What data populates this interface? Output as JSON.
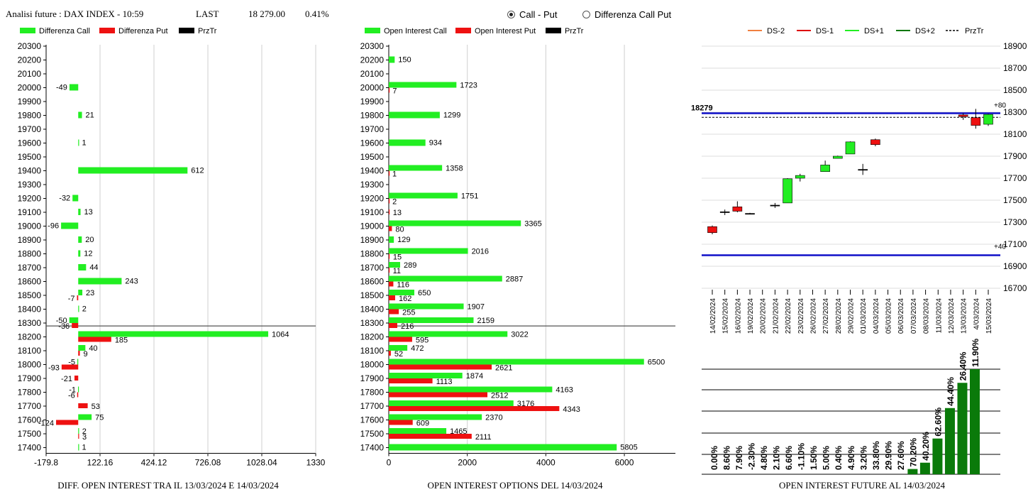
{
  "header": {
    "title": "Analisi future : DAX INDEX - 10:59",
    "last_label": "LAST",
    "last_value": "18 279.00",
    "change": "0.41%"
  },
  "mode": {
    "options": [
      {
        "label": "Call - Put",
        "selected": true
      },
      {
        "label": "Differenza Call Put",
        "selected": false
      }
    ]
  },
  "chart_data": [
    {
      "type": "bar",
      "orientation": "horizontal",
      "title": "DIFF. OPEN INTEREST TRA IL 13/03/2024 E 14/03/2024",
      "legend": [
        {
          "name": "Differenza Call",
          "color": "#22ee22"
        },
        {
          "name": "Differenza Put",
          "color": "#ee1111"
        },
        {
          "name": "PrzTr",
          "color": "#000000"
        }
      ],
      "categories": [
        "20300",
        "20200",
        "20100",
        "20000",
        "19900",
        "19800",
        "19700",
        "19600",
        "19500",
        "19400",
        "19300",
        "19200",
        "19100",
        "19000",
        "18900",
        "18800",
        "18700",
        "18600",
        "18500",
        "18400",
        "18300",
        "18200",
        "18100",
        "18000",
        "17900",
        "17800",
        "17700",
        "17600",
        "17500",
        "17400"
      ],
      "series": [
        {
          "name": "Differenza Call",
          "values": [
            null,
            null,
            null,
            -49,
            null,
            21,
            null,
            1,
            null,
            612,
            null,
            -32,
            13,
            -96,
            20,
            12,
            44,
            243,
            23,
            2,
            -50,
            1064,
            40,
            -5,
            null,
            -1,
            null,
            75,
            2,
            1
          ]
        },
        {
          "name": "Differenza Put",
          "values": [
            null,
            null,
            null,
            null,
            null,
            null,
            null,
            null,
            null,
            null,
            null,
            null,
            null,
            null,
            null,
            null,
            null,
            null,
            -7,
            null,
            -36,
            185,
            9,
            -93,
            -21,
            -6,
            53,
            -124,
            3,
            null
          ]
        }
      ],
      "xticks": [
        "-179.8",
        "122.16",
        "424.12",
        "726.08",
        "1028.04",
        "1330"
      ],
      "xlim": [
        -179.8,
        1330
      ],
      "price_level": "18279"
    },
    {
      "type": "bar",
      "orientation": "horizontal",
      "title": "OPEN INTEREST OPTIONS DEL 14/03/2024",
      "legend": [
        {
          "name": "Open Interest Call",
          "color": "#22ee22"
        },
        {
          "name": "Open Interest Put",
          "color": "#ee1111"
        },
        {
          "name": "PrzTr",
          "color": "#000000"
        }
      ],
      "categories": [
        "20300",
        "20200",
        "20100",
        "20000",
        "19900",
        "19800",
        "19700",
        "19600",
        "19500",
        "19400",
        "19300",
        "19200",
        "19100",
        "19000",
        "18900",
        "18800",
        "18700",
        "18600",
        "18500",
        "18400",
        "18300",
        "18200",
        "18100",
        "18000",
        "17900",
        "17800",
        "17700",
        "17600",
        "17500",
        "17400"
      ],
      "series": [
        {
          "name": "Open Interest Call",
          "values": [
            null,
            150,
            null,
            1723,
            null,
            1299,
            null,
            934,
            null,
            1358,
            null,
            1751,
            null,
            3365,
            129,
            2016,
            289,
            2887,
            650,
            1907,
            2159,
            3022,
            472,
            6500,
            1874,
            4163,
            3176,
            2370,
            1465,
            5805
          ]
        },
        {
          "name": "Open Interest Put",
          "values": [
            null,
            null,
            null,
            7,
            null,
            null,
            null,
            null,
            null,
            1,
            null,
            2,
            13,
            80,
            null,
            15,
            11,
            116,
            162,
            255,
            216,
            595,
            52,
            2621,
            1113,
            2512,
            4343,
            609,
            2111,
            null
          ]
        }
      ],
      "xticks": [
        "0",
        "2000",
        "4000",
        "6000"
      ],
      "xlim": [
        0,
        7300
      ],
      "price_level": "18279"
    },
    {
      "type": "candlestick",
      "legend": [
        {
          "name": "DS-2",
          "color": "#f08040",
          "style": "solid"
        },
        {
          "name": "DS-1",
          "color": "#dd0000",
          "style": "solid"
        },
        {
          "name": "DS+1",
          "color": "#22ee22",
          "style": "solid"
        },
        {
          "name": "DS+2",
          "color": "#007700",
          "style": "solid"
        },
        {
          "name": "PrzTr",
          "color": "#000000",
          "style": "dashed"
        }
      ],
      "dates": [
        "14/02/2024",
        "15/02/2024",
        "16/02/2024",
        "19/02/2024",
        "20/02/2024",
        "21/02/2024",
        "22/02/2024",
        "23/02/2024",
        "26/02/2024",
        "27/02/2024",
        "28/02/2024",
        "29/02/2024",
        "01/03/2024",
        "04/03/2024",
        "05/03/2024",
        "06/03/2024",
        "07/03/2024",
        "08/03/2024",
        "11/03/2024",
        "12/03/2024",
        "13/03/2024",
        "4/03/2024",
        "15/03/2024"
      ],
      "candles": [
        {
          "o": 17260,
          "h": 17270,
          "l": 17190,
          "c": 17205
        },
        {
          "o": 17395,
          "h": 17415,
          "l": 17365,
          "c": 17395
        },
        {
          "o": 17440,
          "h": 17490,
          "l": 17390,
          "c": 17400
        },
        {
          "o": 17380,
          "h": 17385,
          "l": 17375,
          "c": 17380
        },
        null,
        {
          "o": 17455,
          "h": 17475,
          "l": 17430,
          "c": 17455
        },
        {
          "o": 17475,
          "h": 17700,
          "l": 17475,
          "c": 17695
        },
        {
          "o": 17700,
          "h": 17740,
          "l": 17670,
          "c": 17725
        },
        null,
        {
          "o": 17760,
          "h": 17860,
          "l": 17760,
          "c": 17820
        },
        {
          "o": 17880,
          "h": 17905,
          "l": 17880,
          "c": 17900
        },
        {
          "o": 17920,
          "h": 18035,
          "l": 17920,
          "c": 18030
        },
        {
          "o": 17780,
          "h": 17830,
          "l": 17730,
          "c": 17780
        },
        {
          "o": 18050,
          "h": 18060,
          "l": 17990,
          "c": 18005
        },
        null,
        null,
        null,
        null,
        null,
        null,
        {
          "o": 18275,
          "h": 18290,
          "l": 18230,
          "c": 18260
        },
        {
          "o": 18250,
          "h": 18330,
          "l": 18150,
          "c": 18180
        },
        {
          "o": 18190,
          "h": 18285,
          "l": 18175,
          "c": 18280
        }
      ],
      "yticks": [
        "18900",
        "18700",
        "18500",
        "18300",
        "18100",
        "17900",
        "17700",
        "17500",
        "17300",
        "17100",
        "16900",
        "16700"
      ],
      "ylim": [
        16700,
        18900
      ],
      "prz_label": "18279",
      "prz_value": 18279,
      "upper_line": 18290,
      "lower_line": 17000,
      "upper_tag": "+80",
      "lower_tag": "+40"
    },
    {
      "type": "bar",
      "title": "OPEN INTEREST FUTURE AL 14/03/2024",
      "labels": [
        "0.00%",
        "8.60%",
        "7.90%",
        "-2.30%",
        "4.80%",
        "2.10%",
        "6.60%",
        "-1.10%",
        "1.50%",
        "5.00%",
        "0.40%",
        "4.90%",
        "3.20%",
        "33.80%",
        "29.90%",
        "27.60%",
        "70.20%",
        "40.20%",
        "62.60%",
        "44.40%",
        "26.40%",
        "11.90%"
      ],
      "values": [
        null,
        null,
        null,
        null,
        null,
        null,
        null,
        null,
        null,
        null,
        null,
        null,
        null,
        null,
        null,
        null,
        5,
        11,
        34,
        63,
        87,
        100
      ],
      "color": "#0a7a0a"
    }
  ]
}
